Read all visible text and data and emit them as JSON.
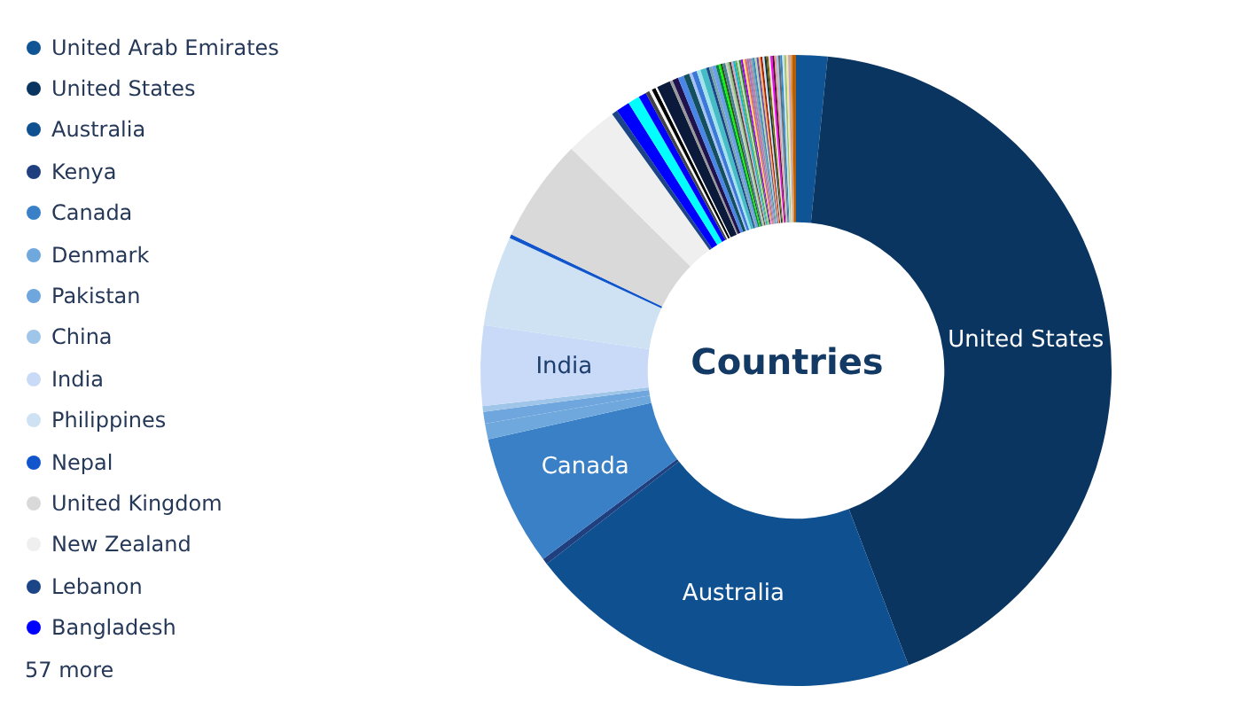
{
  "chart_data": {
    "type": "donut",
    "title": "Countries",
    "categories": [
      "United Arab Emirates",
      "United States",
      "Australia",
      "Kenya",
      "Canada",
      "Denmark",
      "Pakistan",
      "China",
      "India",
      "Philippines",
      "Nepal",
      "United Kingdom",
      "New Zealand",
      "Lebanon",
      "Bangladesh",
      null,
      null,
      null,
      null,
      null,
      null,
      null,
      null,
      null,
      null,
      null,
      null,
      null,
      null,
      null,
      null,
      null,
      null,
      null,
      null,
      null,
      null,
      null,
      null,
      null,
      null,
      null,
      null,
      null,
      null,
      null,
      null,
      null,
      null,
      null,
      null,
      null,
      null,
      null,
      null,
      null,
      null,
      null,
      null,
      null,
      null,
      null,
      null,
      null,
      null,
      null,
      null,
      null,
      null,
      null,
      null,
      null
    ],
    "values": [
      1.6,
      42.6,
      20.3,
      0.3,
      6.7,
      0.8,
      0.6,
      0.3,
      4.1,
      4.6,
      0.2,
      5.3,
      2.7,
      0.3,
      0.7,
      0.6,
      0.4,
      0.2,
      0.15,
      0.2,
      0.1,
      0.7,
      0.15,
      0.3,
      0.3,
      0.3,
      0.15,
      0.25,
      0.2,
      0.3,
      0.15,
      0.15,
      0.2,
      0.15,
      0.1,
      0.1,
      0.15,
      0.1,
      0.1,
      0.1,
      0.1,
      0.1,
      0.1,
      0.1,
      0.1,
      0.1,
      0.1,
      0.1,
      0.1,
      0.1,
      0.1,
      0.1,
      0.1,
      0.1,
      0.1,
      0.1,
      0.1,
      0.1,
      0.1,
      0.1,
      0.1,
      0.1,
      0.1,
      0.1,
      0.1,
      0.1,
      0.1,
      0.1,
      0.1,
      0.1,
      0.1,
      0.2
    ],
    "colors": [
      "#0f5494",
      "#0a3561",
      "#0f5091",
      "#1f3f7f",
      "#3a80c6",
      "#6fa8dc",
      "#6ea6dd",
      "#9fc5e8",
      "#c9daf8",
      "#cfe2f3",
      "#1155cc",
      "#d9d9d9",
      "#efefef",
      "#1c4587",
      "#0000ff",
      "#00ffff",
      "#0000ff",
      "#434343",
      "#f3f3f3",
      "#000000",
      "#ffffff",
      "#0b1a3a",
      "#999999",
      "#20124d",
      "#4a86e8",
      "#134f5c",
      "#a4c2f4",
      "#3c78d8",
      "#a2e3ec",
      "#46bdc6",
      "#1c4587",
      "#76a5af",
      "#6d9eeb",
      "#0b8043",
      "#00ff00",
      "#274e13",
      "#45818e",
      "#cccccc",
      "#93c47d",
      "#434343",
      "#d5a6bd",
      "#00bcd4",
      "#6aa84f",
      "#b7e1cd",
      "#38761d",
      "#9900ff",
      "#ffd966",
      "#e06666",
      "#8e7cc3",
      "#c27ba0",
      "#76a5af",
      "#3d85c6",
      "#b6d7a8",
      "#674ea7",
      "#f6b26b",
      "#a61c00",
      "#cfe2f3",
      "#0c343d",
      "#7f6000",
      "#d9ead3",
      "#ff00ff",
      "#4c1130",
      "#ea9999",
      "#9fc5e8",
      "#666666",
      "#2986cc",
      "#d0e0e3",
      "#93c47d",
      "#ffe599",
      "#b4a7d6",
      "#e69138",
      "#b45f06"
    ],
    "value_labels": [
      null,
      "United States",
      "Australia",
      null,
      "Canada",
      null,
      null,
      null,
      "India",
      null,
      null,
      null,
      null,
      null,
      null,
      null,
      null,
      null,
      null,
      null,
      null,
      null,
      null,
      null,
      null,
      null,
      null,
      null,
      null,
      null,
      null,
      null,
      null,
      null,
      null,
      null,
      null,
      null,
      null,
      null,
      null,
      null,
      null,
      null,
      null,
      null,
      null,
      null,
      null,
      null,
      null,
      null,
      null,
      null,
      null,
      null,
      null,
      null,
      null,
      null,
      null,
      null,
      null,
      null,
      null,
      null,
      null,
      null,
      null,
      null,
      null,
      null
    ],
    "legend": "left",
    "annotations": [
      "57 more"
    ]
  }
}
